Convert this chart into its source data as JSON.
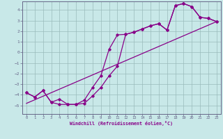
{
  "xlabel": "Windchill (Refroidissement éolien,°C)",
  "bg_color": "#c8e8e8",
  "line_color": "#880088",
  "grid_color": "#99bbbb",
  "axis_color": "#666688",
  "xlim": [
    -0.5,
    23.5
  ],
  "ylim": [
    -5.8,
    4.8
  ],
  "xticks": [
    0,
    1,
    2,
    3,
    4,
    5,
    6,
    7,
    8,
    9,
    10,
    11,
    12,
    13,
    14,
    15,
    16,
    17,
    18,
    19,
    20,
    21,
    22,
    23
  ],
  "yticks": [
    -5,
    -4,
    -3,
    -2,
    -1,
    0,
    1,
    2,
    3,
    4
  ],
  "series1_x": [
    0,
    1,
    2,
    3,
    4,
    5,
    6,
    7,
    8,
    9,
    10,
    11,
    12,
    13,
    14,
    15,
    16,
    17,
    18,
    19,
    20,
    21,
    22,
    23
  ],
  "series1_y": [
    -3.8,
    -4.2,
    -3.6,
    -4.7,
    -4.9,
    -4.9,
    -4.9,
    -4.8,
    -4.1,
    -3.3,
    -2.2,
    -1.3,
    1.7,
    1.9,
    2.2,
    2.5,
    2.7,
    2.1,
    4.4,
    4.6,
    4.3,
    3.3,
    3.2,
    2.9
  ],
  "series2_x": [
    0,
    1,
    2,
    3,
    4,
    5,
    6,
    7,
    8,
    9,
    10,
    11,
    12,
    13,
    14,
    15,
    16,
    17,
    18,
    19,
    20,
    21,
    22,
    23
  ],
  "series2_y": [
    -3.8,
    -4.2,
    -3.6,
    -4.7,
    -4.4,
    -4.9,
    -4.9,
    -4.5,
    -3.3,
    -2.2,
    0.3,
    1.65,
    1.7,
    1.9,
    2.2,
    2.5,
    2.7,
    2.1,
    4.4,
    4.6,
    4.3,
    3.3,
    3.2,
    2.9
  ],
  "series3_x": [
    0,
    23
  ],
  "series3_y": [
    -4.8,
    2.9
  ]
}
